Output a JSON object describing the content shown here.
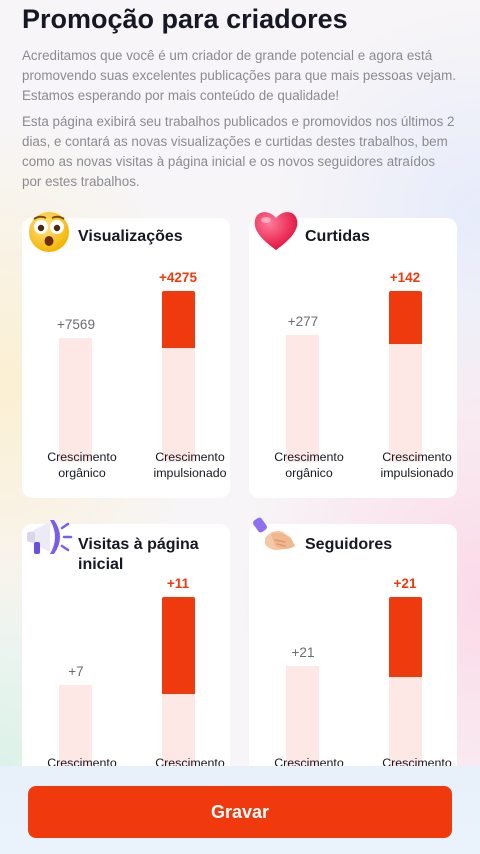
{
  "header": {
    "title": "Promoção para criadores",
    "paragraph1": "Acreditamos que você é um criador de grande potencial e agora está promovendo suas excelentes publicações para que mais pessoas vejam. Estamos esperando por mais conteúdo de qualidade!",
    "paragraph2": "Esta página exibirá seu trabalhos publicados e promovidos nos últimos 2 dias, e contará as novas visualizações e curtidas destes trabalhos, bem como as novas visitas à página inicial e os novos seguidores atraídos por estes trabalhos."
  },
  "labels": {
    "organic": "Crescimento orgânico",
    "organic_short": "Crescimento",
    "boosted": "Crescimento impulsionado",
    "boosted_short": "Crescimento"
  },
  "cards": [
    {
      "title": "Visualizações",
      "icon": "shocked-face-icon",
      "organic": "+7569",
      "boosted": "+4275"
    },
    {
      "title": "Curtidas",
      "icon": "heart-icon",
      "organic": "+277",
      "boosted": "+142"
    },
    {
      "title": "Visitas à página inicial",
      "icon": "megaphone-icon",
      "organic": "+7",
      "boosted": "+11"
    },
    {
      "title": "Seguidores",
      "icon": "handshake-icon",
      "organic": "+21",
      "boosted": "+21"
    }
  ],
  "colors": {
    "accent": "#f03a0e",
    "bar_light": "#fde8e6"
  },
  "footer": {
    "record_button": "Gravar"
  }
}
